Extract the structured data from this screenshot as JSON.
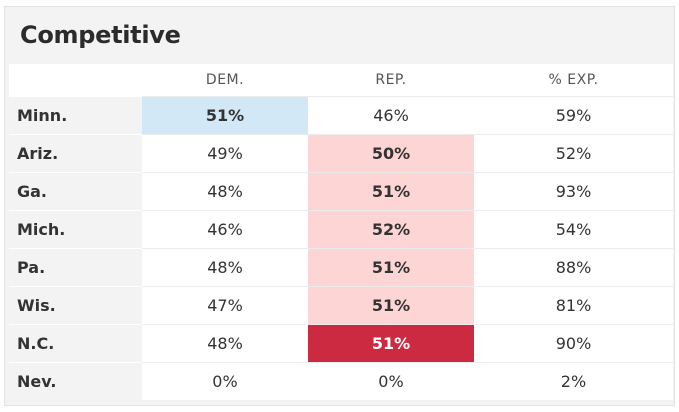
{
  "title": "Competitive",
  "columns": {
    "state": "",
    "dem": "DEM.",
    "rep": "REP.",
    "exp": "% EXP."
  },
  "rows": [
    {
      "state": "Minn.",
      "dem": "51%",
      "rep": "46%",
      "exp": "59%",
      "leader": "dem",
      "called": false
    },
    {
      "state": "Ariz.",
      "dem": "49%",
      "rep": "50%",
      "exp": "52%",
      "leader": "rep",
      "called": false
    },
    {
      "state": "Ga.",
      "dem": "48%",
      "rep": "51%",
      "exp": "93%",
      "leader": "rep",
      "called": false
    },
    {
      "state": "Mich.",
      "dem": "46%",
      "rep": "52%",
      "exp": "54%",
      "leader": "rep",
      "called": false
    },
    {
      "state": "Pa.",
      "dem": "48%",
      "rep": "51%",
      "exp": "88%",
      "leader": "rep",
      "called": false
    },
    {
      "state": "Wis.",
      "dem": "47%",
      "rep": "51%",
      "exp": "81%",
      "leader": "rep",
      "called": false
    },
    {
      "state": "N.C.",
      "dem": "48%",
      "rep": "51%",
      "exp": "90%",
      "leader": "rep",
      "called": true
    },
    {
      "state": "Nev.",
      "dem": "0%",
      "rep": "0%",
      "exp": "2%",
      "leader": "",
      "called": false
    }
  ],
  "colors": {
    "dem_light": "#d3e8f6",
    "rep_light": "#fdd5d5",
    "rep_dark": "#cc2a41"
  }
}
